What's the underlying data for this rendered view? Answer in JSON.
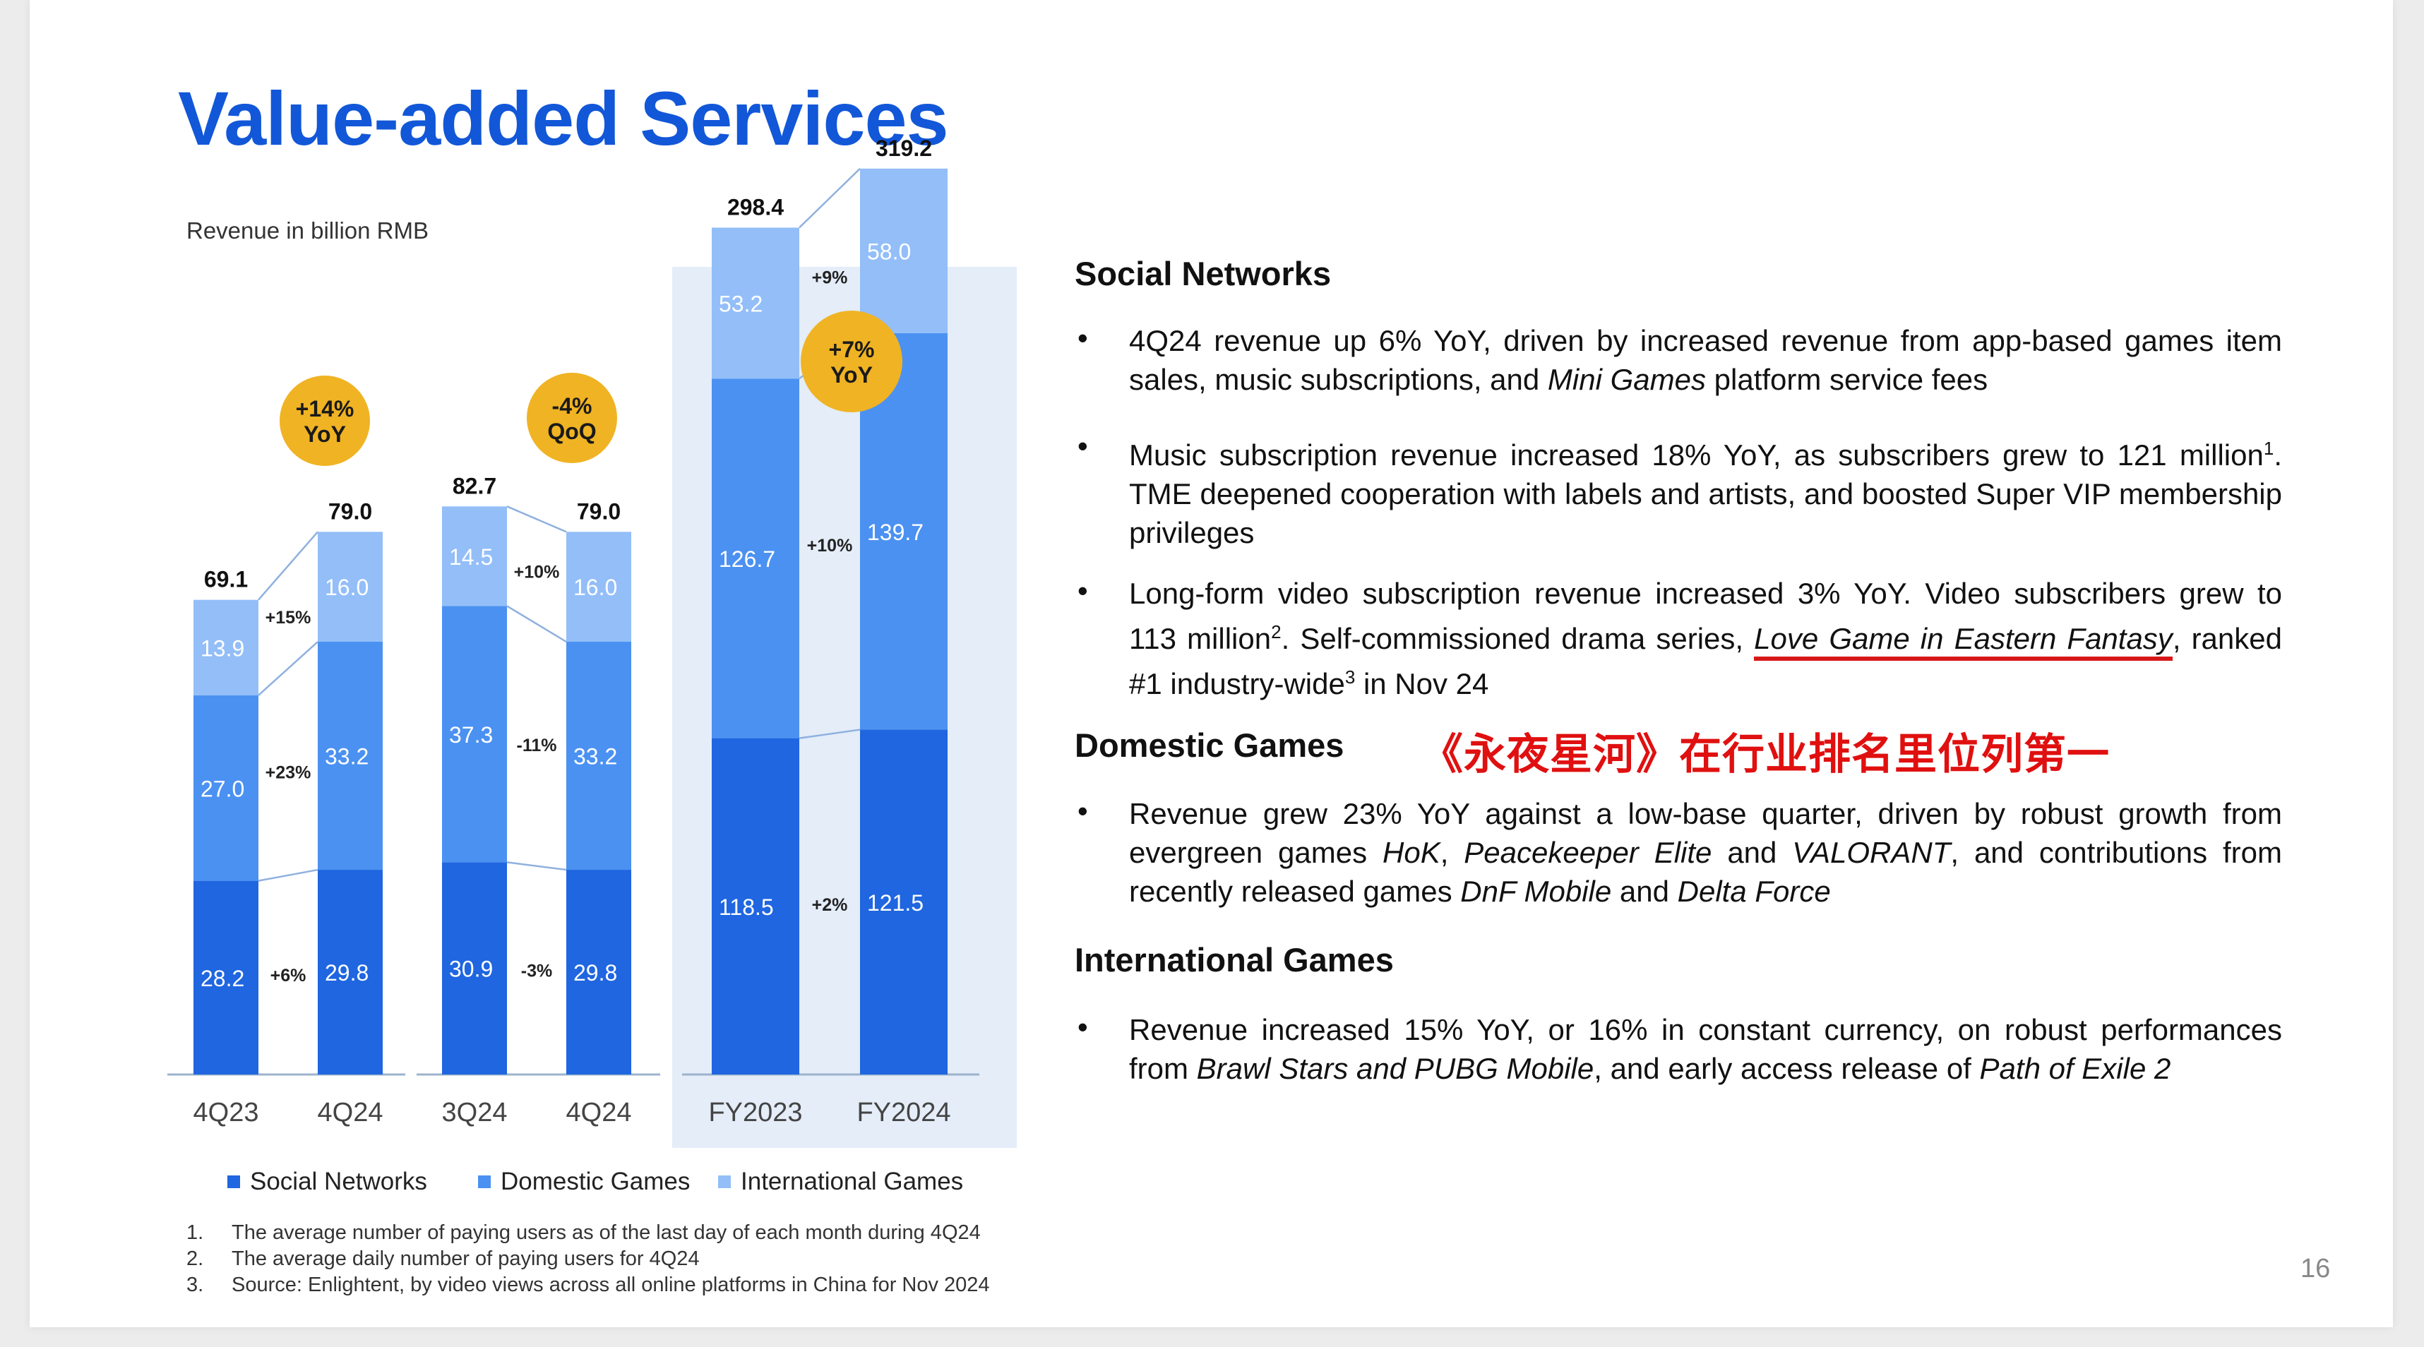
{
  "title": "Value-added Services",
  "revenue_label": "Revenue in billion RMB",
  "colors": {
    "title": "#1257d8",
    "social": "#1f66e0",
    "domestic": "#4b91f1",
    "international": "#93bef8",
    "badge": "#f0b323",
    "panel": "#e4edf8",
    "axis": "#9db3cc",
    "annotation": "#e01010"
  },
  "chart_data": {
    "type": "bar",
    "stacked": true,
    "categories": [
      "4Q23",
      "4Q24",
      "3Q24",
      "4Q24",
      "FY2023",
      "FY2024"
    ],
    "series": [
      {
        "name": "Social Networks",
        "values": [
          28.2,
          29.8,
          30.9,
          29.8,
          118.5,
          121.5
        ],
        "labels": [
          "28.2",
          "29.8",
          "30.9",
          "29.8",
          "118.5",
          "121.5"
        ]
      },
      {
        "name": "Domestic Games",
        "values": [
          27.0,
          33.2,
          37.3,
          33.2,
          126.7,
          139.7
        ],
        "labels": [
          "27.0",
          "33.2",
          "37.3",
          "33.2",
          "126.7",
          "139.7"
        ]
      },
      {
        "name": "International Games",
        "values": [
          13.9,
          16.0,
          14.5,
          16.0,
          53.2,
          58.0
        ],
        "labels": [
          "13.9",
          "16.0",
          "14.5",
          "16.0",
          "53.2",
          "58.0"
        ]
      }
    ],
    "totals": [
      "69.1",
      "79.0",
      "82.7",
      "79.0",
      "298.4",
      "319.2"
    ],
    "groups": [
      {
        "badge": [
          "+14%",
          "YoY"
        ],
        "changes": {
          "social": "+6%",
          "domestic": "+23%",
          "international": "+15%"
        }
      },
      {
        "badge": [
          "-4%",
          "QoQ"
        ],
        "changes": {
          "social": "-3%",
          "domestic": "-11%",
          "international": "+10%"
        }
      },
      {
        "badge": [
          "+7%",
          "YoY"
        ],
        "changes": {
          "social": "+2%",
          "domestic": "+10%",
          "international": "+9%"
        }
      }
    ],
    "legend": [
      "Social Networks",
      "Domestic Games",
      "International Games"
    ]
  },
  "sections": {
    "social": {
      "heading": "Social Networks",
      "b1_a": "4Q24 revenue up 6% YoY, driven by increased revenue from app-based games item sales, music subscriptions, and ",
      "b1_it": "Mini Games",
      "b1_b": " platform service fees",
      "b2_a": "Music subscription revenue increased 18% YoY, as subscribers grew to 121 million",
      "b2_sup": "1",
      "b2_b": ". TME deepened cooperation with labels and artists, and boosted Super VIP membership privileges",
      "b3_a": "Long-form video subscription revenue increased 3% YoY. Video subscribers grew to 113 million",
      "b3_sup": "2",
      "b3_b": ". Self-commissioned drama series, ",
      "b3_it": "Love Game in Eastern Fantasy",
      "b3_c": ", ranked #1 industry-wide",
      "b3_sup2": "3",
      "b3_d": " in Nov 24"
    },
    "domestic": {
      "heading": "Domestic Games",
      "annotation": "《永夜星河》在行业排名里位列第一",
      "b1_a": "Revenue grew 23% YoY against a low-base quarter, driven by robust growth from evergreen games ",
      "b1_it1": "HoK",
      "b1_sep1": ", ",
      "b1_it2": "Peacekeeper Elite",
      "b1_sep2": " and ",
      "b1_it3": "VALORANT",
      "b1_b": ", and contributions from recently released games ",
      "b1_it4": "DnF Mobile",
      "b1_sep3": " and ",
      "b1_it5": "Delta Force"
    },
    "international": {
      "heading": "International Games",
      "b1_a": "Revenue increased 15% YoY, or 16% in constant currency, on robust performances from ",
      "b1_it1": "Brawl Stars and PUBG Mobile",
      "b1_b": ", and early access release of ",
      "b1_it2": "Path of Exile 2"
    }
  },
  "footnotes": [
    {
      "num": "1.",
      "text": "The average number of paying users as of the last day of each month during 4Q24"
    },
    {
      "num": "2.",
      "text": "The average daily number of paying users for 4Q24"
    },
    {
      "num": "3.",
      "text": "Source: Enlightent, by video views across all online platforms in China for Nov 2024"
    }
  ],
  "page_number": "16"
}
